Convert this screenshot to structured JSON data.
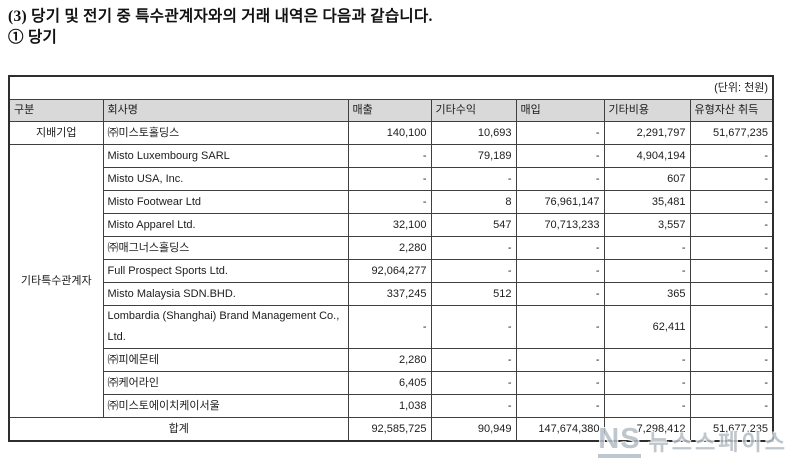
{
  "page": {
    "title": "(3) 당기 및 전기 중 특수관계자와의 거래 내역은 다음과 같습니다.",
    "subtitle": "① 당기"
  },
  "table": {
    "unit_label": "(단위: 천원)",
    "columns": [
      "구분",
      "회사명",
      "매출",
      "기타수익",
      "매입",
      "기타비용",
      "유형자산 취득"
    ],
    "groups": [
      {
        "label": "지배기업",
        "rows": [
          {
            "company": "㈜미스토홀딩스",
            "values": [
              "140,100",
              "10,693",
              "-",
              "2,291,797",
              "51,677,235"
            ]
          }
        ]
      },
      {
        "label": "기타특수관계자",
        "rows": [
          {
            "company": "Misto Luxembourg SARL",
            "values": [
              "-",
              "79,189",
              "-",
              "4,904,194",
              "-"
            ]
          },
          {
            "company": "Misto USA, Inc.",
            "values": [
              "-",
              "-",
              "-",
              "607",
              "-"
            ]
          },
          {
            "company": "Misto Footwear Ltd",
            "values": [
              "-",
              "8",
              "76,961,147",
              "35,481",
              "-"
            ]
          },
          {
            "company": "Misto Apparel Ltd.",
            "values": [
              "32,100",
              "547",
              "70,713,233",
              "3,557",
              "-"
            ]
          },
          {
            "company": "㈜매그너스홀딩스",
            "values": [
              "2,280",
              "-",
              "-",
              "-",
              "-"
            ]
          },
          {
            "company": "Full Prospect Sports Ltd.",
            "values": [
              "92,064,277",
              "-",
              "-",
              "-",
              "-"
            ]
          },
          {
            "company": "Misto Malaysia SDN.BHD.",
            "values": [
              "337,245",
              "512",
              "-",
              "365",
              "-"
            ]
          },
          {
            "company": "Lombardia (Shanghai) Brand Management Co., Ltd.",
            "values": [
              "-",
              "-",
              "-",
              "62,411",
              "-"
            ]
          },
          {
            "company": "㈜피에몬테",
            "values": [
              "2,280",
              "-",
              "-",
              "-",
              "-"
            ]
          },
          {
            "company": "㈜케어라인",
            "values": [
              "6,405",
              "-",
              "-",
              "-",
              "-"
            ]
          },
          {
            "company": "㈜미스토에이치케이서울",
            "values": [
              "1,038",
              "-",
              "-",
              "-",
              "-"
            ]
          }
        ]
      }
    ],
    "total": {
      "label": "합계",
      "values": [
        "92,585,725",
        "90,949",
        "147,674,380",
        "7,298,412",
        "51,677,235"
      ]
    }
  },
  "watermark": {
    "logo": "NS",
    "text": "뉴스스페이스"
  },
  "colors": {
    "header_bg": "#d9d9d9",
    "border": "#3f3f3f",
    "watermark": "#b3bec6"
  }
}
